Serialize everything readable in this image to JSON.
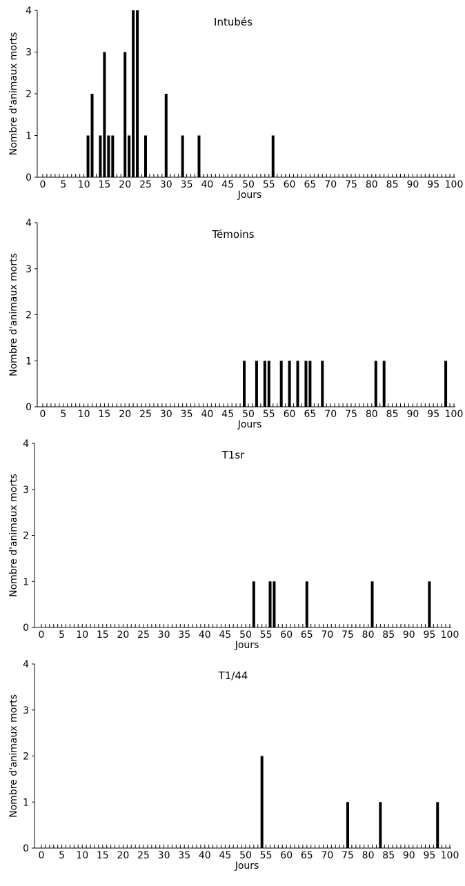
{
  "chart_data": [
    {
      "type": "bar",
      "title": "Intubés",
      "xlabel": "Jours",
      "ylabel": "Nombre d'animaux morts",
      "xlim": [
        0,
        100
      ],
      "ylim": [
        0,
        4
      ],
      "x_ticks": [
        "0",
        "5",
        "10",
        "15",
        "20",
        "25",
        "30",
        "35",
        "40",
        "45",
        "50",
        "55",
        "60",
        "65",
        "70",
        "75",
        "80",
        "85",
        "90",
        "95",
        "100"
      ],
      "y_ticks": [
        "0",
        "1",
        "2",
        "3",
        "4"
      ],
      "grid": false,
      "legend": "none",
      "points": [
        {
          "x": 11,
          "y": 1
        },
        {
          "x": 12,
          "y": 2
        },
        {
          "x": 14,
          "y": 1
        },
        {
          "x": 15,
          "y": 3
        },
        {
          "x": 16,
          "y": 1
        },
        {
          "x": 17,
          "y": 1
        },
        {
          "x": 20,
          "y": 3
        },
        {
          "x": 21,
          "y": 1
        },
        {
          "x": 22,
          "y": 4
        },
        {
          "x": 23,
          "y": 4
        },
        {
          "x": 25,
          "y": 1
        },
        {
          "x": 30,
          "y": 2
        },
        {
          "x": 34,
          "y": 1
        },
        {
          "x": 38,
          "y": 1
        },
        {
          "x": 56,
          "y": 1
        }
      ]
    },
    {
      "type": "bar",
      "title": "Témoins",
      "xlabel": "Jours",
      "ylabel": "Nombre d'animaux morts",
      "xlim": [
        0,
        100
      ],
      "ylim": [
        0,
        4
      ],
      "x_ticks": [
        "0",
        "5",
        "10",
        "15",
        "20",
        "25",
        "30",
        "35",
        "40",
        "45",
        "50",
        "55",
        "60",
        "65",
        "70",
        "75",
        "80",
        "85",
        "90",
        "95",
        "100"
      ],
      "y_ticks": [
        "0",
        "1",
        "2",
        "3",
        "4"
      ],
      "grid": false,
      "legend": "none",
      "points": [
        {
          "x": 49,
          "y": 1
        },
        {
          "x": 52,
          "y": 1
        },
        {
          "x": 54,
          "y": 1
        },
        {
          "x": 55,
          "y": 1
        },
        {
          "x": 58,
          "y": 1
        },
        {
          "x": 60,
          "y": 1
        },
        {
          "x": 62,
          "y": 1
        },
        {
          "x": 64,
          "y": 1
        },
        {
          "x": 65,
          "y": 1
        },
        {
          "x": 68,
          "y": 1
        },
        {
          "x": 81,
          "y": 1
        },
        {
          "x": 83,
          "y": 1
        },
        {
          "x": 98,
          "y": 1
        }
      ]
    },
    {
      "type": "bar",
      "title": "T1sr",
      "xlabel": "Jours",
      "ylabel": "Nombre d'animaux morts",
      "xlim": [
        0,
        100
      ],
      "ylim": [
        0,
        4
      ],
      "x_ticks": [
        "0",
        "5",
        "10",
        "15",
        "20",
        "25",
        "30",
        "35",
        "40",
        "45",
        "50",
        "55",
        "60",
        "65",
        "70",
        "75",
        "80",
        "85",
        "90",
        "95",
        "100"
      ],
      "y_ticks": [
        "0",
        "1",
        "2",
        "3",
        "4"
      ],
      "grid": false,
      "legend": "none",
      "points": [
        {
          "x": 52,
          "y": 1
        },
        {
          "x": 56,
          "y": 1
        },
        {
          "x": 57,
          "y": 1
        },
        {
          "x": 65,
          "y": 1
        },
        {
          "x": 81,
          "y": 1
        },
        {
          "x": 95,
          "y": 1
        }
      ]
    },
    {
      "type": "bar",
      "title": "T1/44",
      "xlabel": "Jours",
      "ylabel": "Nombre d'animaux morts",
      "xlim": [
        0,
        100
      ],
      "ylim": [
        0,
        4
      ],
      "x_ticks": [
        "0",
        "5",
        "10",
        "15",
        "20",
        "25",
        "30",
        "35",
        "40",
        "45",
        "50",
        "55",
        "60",
        "65",
        "70",
        "75",
        "80",
        "85",
        "90",
        "95",
        "100"
      ],
      "y_ticks": [
        "0",
        "1",
        "2",
        "3",
        "4"
      ],
      "grid": false,
      "legend": "none",
      "points": [
        {
          "x": 54,
          "y": 2
        },
        {
          "x": 75,
          "y": 1
        },
        {
          "x": 83,
          "y": 1
        },
        {
          "x": 97,
          "y": 1
        }
      ]
    }
  ]
}
